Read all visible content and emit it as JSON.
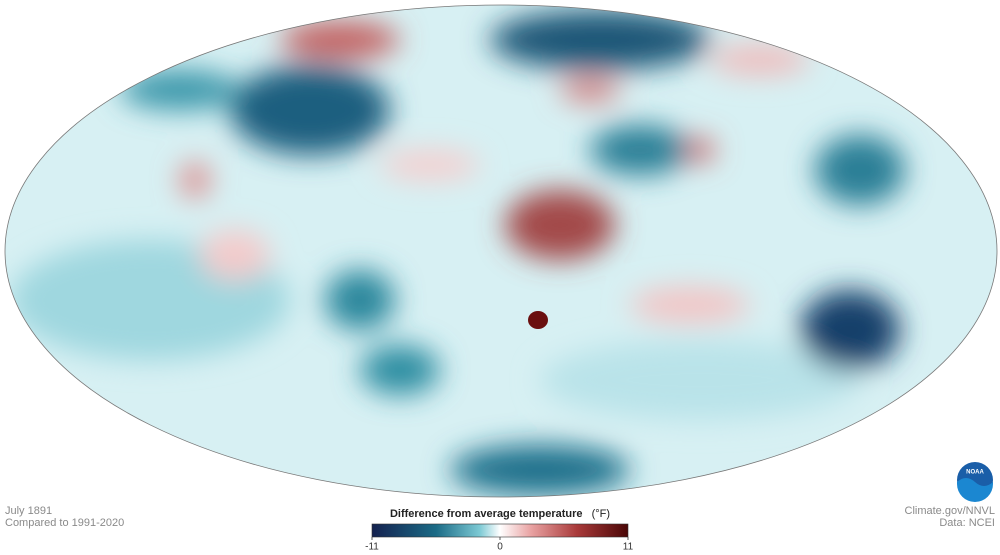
{
  "header": {
    "date": "July 1891",
    "baseline": "Compared to 1991-2020"
  },
  "legend": {
    "title": "Difference from average temperature",
    "unit": "(°F)",
    "min": -11,
    "max": 11,
    "ticks": [
      -11,
      0,
      11
    ]
  },
  "credits": {
    "source": "Climate.gov/NNVL",
    "data": "Data: NCEI",
    "logo": "NOAA"
  }
}
